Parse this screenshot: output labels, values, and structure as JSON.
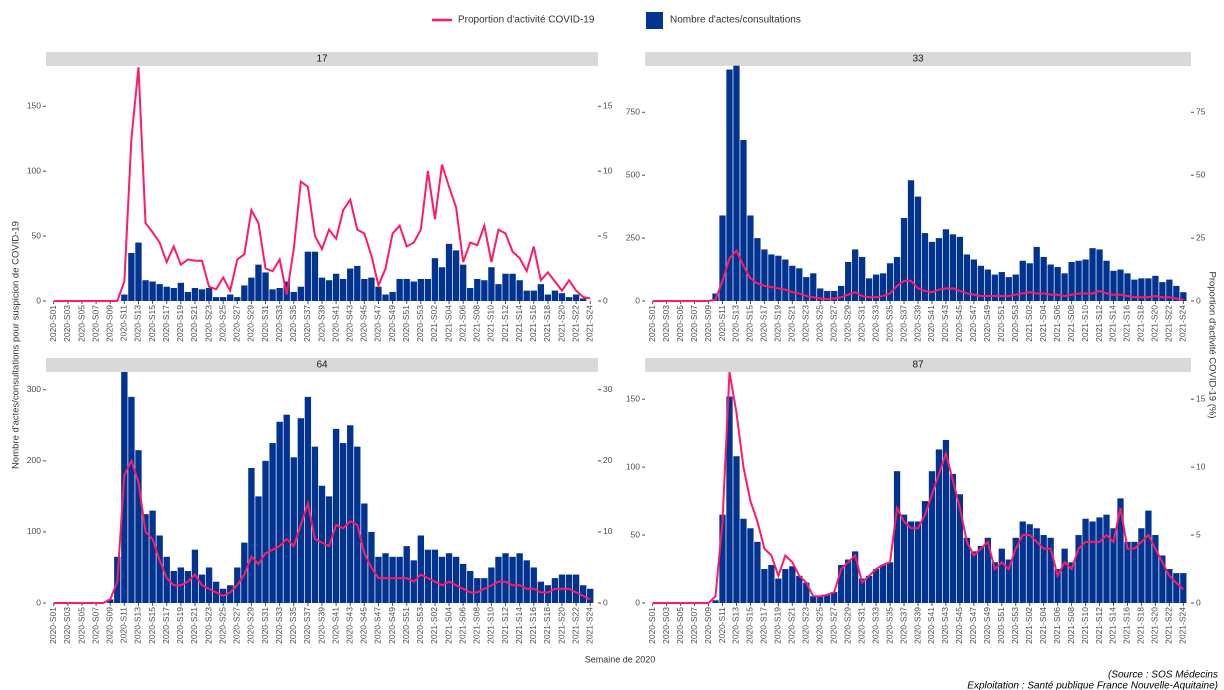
{
  "chart_data": [
    {
      "type": "bar",
      "title": "17",
      "categories": [
        "2020-S01",
        null,
        "2020-S03",
        null,
        "2020-S05",
        null,
        "2020-S07",
        null,
        "2020-S09",
        null,
        "2020-S11",
        null,
        "2020-S13",
        null,
        "2020-S15",
        null,
        "2020-S17",
        null,
        "2020-S19",
        null,
        "2020-S21",
        null,
        "2020-S23",
        null,
        "2020-S25",
        null,
        "2020-S27",
        null,
        "2020-S29",
        null,
        "2020-S31",
        null,
        "2020-S33",
        null,
        "2020-S35",
        null,
        "2020-S37",
        null,
        "2020-S39",
        null,
        "2020-S41",
        null,
        "2020-S43",
        null,
        "2020-S45",
        null,
        "2020-S47",
        null,
        "2020-S49",
        null,
        "2020-S51",
        null,
        "2020-S53",
        null,
        "2021-S02",
        null,
        "2021-S04",
        null,
        "2021-S06",
        null,
        "2021-S08",
        null,
        "2021-S10",
        null,
        "2021-S12",
        null,
        "2021-S14",
        null,
        "2021-S16",
        null,
        "2021-S18",
        null,
        "2021-S20",
        null,
        "2021-S22",
        null,
        "2021-S24"
      ],
      "series": [
        {
          "name": "Proportion d'activité COVID-19",
          "type": "line",
          "axis": "y2",
          "color": "#ff1a66",
          "values": [
            0,
            0,
            0,
            0,
            0,
            0,
            0,
            0,
            0,
            0,
            1.5,
            12.5,
            18,
            6,
            5.3,
            4.5,
            3,
            4.2,
            2.8,
            3.2,
            3.1,
            3.1,
            1.1,
            0.9,
            1.8,
            0.8,
            3.2,
            3.6,
            7,
            6,
            2.5,
            2.3,
            3.2,
            0.5,
            4,
            9.2,
            8.8,
            5,
            4,
            5.5,
            4.8,
            7,
            7.8,
            5.5,
            5.2,
            3.5,
            1.2,
            2.5,
            5.2,
            5.8,
            4.2,
            4.5,
            5.5,
            10,
            6.3,
            10.5,
            8.8,
            7.2,
            3,
            4.5,
            4.3,
            5.8,
            3,
            5.5,
            5.2,
            3.8,
            3.3,
            2.3,
            4.2,
            1.6,
            2.2,
            1.5,
            0.8,
            1.6,
            0.8,
            0.3,
            0.2
          ]
        },
        {
          "name": "Nombre d'actes/consultations",
          "type": "bar",
          "color": "#023391",
          "values": [
            0,
            0,
            0,
            0,
            0,
            0,
            0,
            0,
            0,
            0,
            5,
            37,
            45,
            16,
            15,
            13,
            11,
            10,
            14,
            7,
            10,
            9,
            10,
            3,
            3,
            5,
            3,
            12,
            18,
            28,
            22,
            9,
            10,
            15,
            7,
            11,
            38,
            38,
            18,
            16,
            21,
            17,
            25,
            27,
            17,
            18,
            11,
            5,
            7,
            17,
            17,
            15,
            17,
            17,
            33,
            26,
            44,
            39,
            28,
            10,
            17,
            16,
            26,
            13,
            21,
            21,
            16,
            8,
            8,
            13,
            5,
            8,
            6,
            3,
            5,
            2,
            0
          ]
        }
      ],
      "ylim": [
        0,
        181
      ],
      "yticks": [
        0,
        50,
        100,
        150
      ],
      "y2lim": [
        0,
        18.1
      ],
      "y2ticks": [
        0,
        5,
        10,
        15
      ]
    },
    {
      "type": "bar",
      "title": "33",
      "categories": [
        "2020-S01",
        null,
        "2020-S03",
        null,
        "2020-S05",
        null,
        "2020-S07",
        null,
        "2020-S09",
        null,
        "2020-S11",
        null,
        "2020-S13",
        null,
        "2020-S15",
        null,
        "2020-S17",
        null,
        "2020-S19",
        null,
        "2020-S21",
        null,
        "2020-S23",
        null,
        "2020-S25",
        null,
        "2020-S27",
        null,
        "2020-S29",
        null,
        "2020-S31",
        null,
        "2020-S33",
        null,
        "2020-S35",
        null,
        "2020-S37",
        null,
        "2020-S39",
        null,
        "2020-S41",
        null,
        "2020-S43",
        null,
        "2020-S45",
        null,
        "2020-S47",
        null,
        "2020-S49",
        null,
        "2020-S51",
        null,
        "2020-S53",
        null,
        "2021-S02",
        null,
        "2021-S04",
        null,
        "2021-S06",
        null,
        "2021-S08",
        null,
        "2021-S10",
        null,
        "2021-S12",
        null,
        "2021-S14",
        null,
        "2021-S16",
        null,
        "2021-S18",
        null,
        "2021-S20",
        null,
        "2021-S22",
        null,
        "2021-S24"
      ],
      "series": [
        {
          "name": "Proportion d'activité COVID-19",
          "type": "line",
          "axis": "y2",
          "color": "#ff1a66",
          "values": [
            0,
            0,
            0,
            0,
            0,
            0,
            0,
            0,
            0,
            0.5,
            8,
            17,
            20,
            14,
            9,
            7,
            6,
            5.5,
            5,
            4.5,
            3.5,
            3,
            2,
            1.5,
            1,
            0.8,
            1,
            1.5,
            2.5,
            3.5,
            2,
            1.5,
            1.5,
            2,
            3,
            6,
            8,
            8,
            5,
            4,
            3.5,
            4.5,
            5,
            5,
            4,
            3,
            2.5,
            2,
            2,
            2,
            2,
            2,
            2.5,
            3,
            3.5,
            3,
            3,
            2.5,
            2.5,
            2,
            2.5,
            3,
            3,
            3,
            4,
            3,
            2.5,
            2.5,
            2,
            1.5,
            1.5,
            1.5,
            2,
            1.5,
            1.5,
            1,
            0.5
          ]
        },
        {
          "name": "Nombre d'actes/consultations",
          "type": "bar",
          "color": "#023391",
          "values": [
            0,
            0,
            0,
            0,
            0,
            0,
            0,
            0,
            0,
            30,
            340,
            920,
            935,
            640,
            340,
            250,
            205,
            185,
            180,
            165,
            140,
            130,
            95,
            110,
            50,
            40,
            40,
            60,
            155,
            205,
            175,
            90,
            105,
            110,
            150,
            175,
            330,
            480,
            415,
            270,
            235,
            250,
            285,
            265,
            255,
            185,
            165,
            140,
            125,
            105,
            115,
            95,
            105,
            160,
            150,
            215,
            175,
            145,
            135,
            110,
            155,
            160,
            165,
            210,
            205,
            160,
            120,
            125,
            110,
            85,
            90,
            90,
            100,
            75,
            85,
            60,
            35
          ]
        }
      ],
      "ylim": [
        0,
        934
      ],
      "yticks": [
        0,
        250,
        500,
        750
      ],
      "y2lim": [
        0,
        93.4
      ],
      "y2ticks": [
        0,
        25,
        50,
        75
      ]
    },
    {
      "type": "bar",
      "title": "64",
      "categories": [
        "2020-S01",
        null,
        "2020-S03",
        null,
        "2020-S05",
        null,
        "2020-S07",
        null,
        "2020-S09",
        null,
        "2020-S11",
        null,
        "2020-S13",
        null,
        "2020-S15",
        null,
        "2020-S17",
        null,
        "2020-S19",
        null,
        "2020-S21",
        null,
        "2020-S23",
        null,
        "2020-S25",
        null,
        "2020-S27",
        null,
        "2020-S29",
        null,
        "2020-S31",
        null,
        "2020-S33",
        null,
        "2020-S35",
        null,
        "2020-S37",
        null,
        "2020-S39",
        null,
        "2020-S41",
        null,
        "2020-S43",
        null,
        "2020-S45",
        null,
        "2020-S47",
        null,
        "2020-S49",
        null,
        "2020-S51",
        null,
        "2020-S53",
        null,
        "2021-S02",
        null,
        "2021-S04",
        null,
        "2021-S06",
        null,
        "2021-S08",
        null,
        "2021-S10",
        null,
        "2021-S12",
        null,
        "2021-S14",
        null,
        "2021-S16",
        null,
        "2021-S18",
        null,
        "2021-S20",
        null,
        "2021-S22",
        null,
        "2021-S24"
      ],
      "series": [
        {
          "name": "Proportion d'activité COVID-19",
          "type": "line",
          "axis": "y2",
          "color": "#ff1a66",
          "values": [
            0,
            0,
            0,
            0,
            0,
            0,
            0,
            0,
            0.5,
            3,
            18,
            20,
            17,
            10,
            9,
            6,
            3.5,
            2.5,
            2.5,
            3,
            4,
            2.5,
            2,
            1.5,
            1,
            1.5,
            2.5,
            4,
            6.5,
            5.5,
            7,
            7.5,
            8,
            9,
            8,
            11,
            14,
            9,
            8.5,
            8,
            11,
            10.5,
            11.5,
            11,
            7,
            5,
            3.5,
            3.5,
            3.5,
            3.5,
            3.5,
            3,
            4,
            3.5,
            3,
            2.5,
            3,
            2.5,
            2,
            1.5,
            1.5,
            2,
            2.5,
            3,
            3,
            2.5,
            2.5,
            2,
            2,
            1.5,
            1.5,
            2,
            2,
            2,
            1.5,
            1,
            0.5
          ]
        },
        {
          "name": "Nombre d'actes/consultations",
          "type": "bar",
          "color": "#023391",
          "values": [
            0,
            0,
            0,
            0,
            0,
            0,
            0,
            0,
            5,
            65,
            325,
            290,
            215,
            125,
            130,
            95,
            65,
            45,
            50,
            45,
            75,
            40,
            50,
            30,
            20,
            25,
            50,
            85,
            190,
            150,
            200,
            225,
            255,
            265,
            205,
            260,
            290,
            220,
            165,
            150,
            245,
            225,
            250,
            220,
            140,
            100,
            65,
            70,
            65,
            65,
            80,
            60,
            95,
            75,
            75,
            65,
            70,
            65,
            55,
            45,
            35,
            35,
            50,
            65,
            70,
            65,
            70,
            60,
            50,
            30,
            25,
            35,
            40,
            40,
            40,
            25,
            20
          ]
        }
      ],
      "ylim": [
        0,
        325
      ],
      "yticks": [
        0,
        100,
        200,
        300
      ],
      "y2lim": [
        0,
        32.5
      ],
      "y2ticks": [
        0,
        10,
        20,
        30
      ]
    },
    {
      "type": "bar",
      "title": "87",
      "categories": [
        "2020-S01",
        null,
        "2020-S03",
        null,
        "2020-S05",
        null,
        "2020-S07",
        null,
        "2020-S09",
        null,
        "2020-S11",
        null,
        "2020-S13",
        null,
        "2020-S15",
        null,
        "2020-S17",
        null,
        "2020-S19",
        null,
        "2020-S21",
        null,
        "2020-S23",
        null,
        "2020-S25",
        null,
        "2020-S27",
        null,
        "2020-S29",
        null,
        "2020-S31",
        null,
        "2020-S33",
        null,
        "2020-S35",
        null,
        "2020-S37",
        null,
        "2020-S39",
        null,
        "2020-S41",
        null,
        "2020-S43",
        null,
        "2020-S45",
        null,
        "2020-S47",
        null,
        "2020-S49",
        null,
        "2020-S51",
        null,
        "2020-S53",
        null,
        "2021-S02",
        null,
        "2021-S04",
        null,
        "2021-S06",
        null,
        "2021-S08",
        null,
        "2021-S10",
        null,
        "2021-S12",
        null,
        "2021-S14",
        null,
        "2021-S16",
        null,
        "2021-S18",
        null,
        "2021-S20",
        null,
        "2021-S22",
        null,
        "2021-S24"
      ],
      "series": [
        {
          "name": "Proportion d'activité COVID-19",
          "type": "line",
          "axis": "y2",
          "color": "#ff1a66",
          "values": [
            0,
            0,
            0,
            0,
            0,
            0,
            0,
            0,
            0,
            0.5,
            6,
            17,
            14,
            10,
            7.5,
            6,
            4,
            3.5,
            2,
            3.5,
            3,
            2,
            1.5,
            0.5,
            0.5,
            0.6,
            0.8,
            2.5,
            3,
            3.5,
            1.5,
            2,
            2.5,
            2.8,
            3,
            7,
            6,
            5.5,
            5.5,
            6.5,
            8,
            9.5,
            11,
            9,
            7,
            4.5,
            3.5,
            4,
            4.5,
            2.5,
            3,
            2.5,
            4,
            5,
            5,
            4.5,
            4,
            4,
            2,
            3,
            2.5,
            4,
            4.5,
            4.5,
            4.5,
            5,
            4.5,
            7,
            4,
            4,
            4.5,
            5,
            4,
            3,
            2,
            1.5,
            1
          ]
        },
        {
          "name": "Nombre d'actes/consultations",
          "type": "bar",
          "color": "#023391",
          "values": [
            0,
            0,
            0,
            0,
            0,
            0,
            0,
            0,
            0,
            2,
            65,
            152,
            108,
            62,
            55,
            45,
            25,
            28,
            18,
            25,
            27,
            20,
            15,
            5,
            5,
            6,
            8,
            28,
            32,
            38,
            18,
            20,
            25,
            28,
            30,
            97,
            65,
            60,
            60,
            75,
            97,
            113,
            120,
            95,
            80,
            48,
            38,
            42,
            48,
            30,
            40,
            32,
            48,
            60,
            58,
            55,
            50,
            48,
            25,
            40,
            30,
            50,
            62,
            60,
            63,
            65,
            55,
            77,
            45,
            45,
            55,
            68,
            50,
            35,
            25,
            22,
            22
          ]
        }
      ],
      "ylim": [
        0,
        170
      ],
      "yticks": [
        0,
        50,
        100,
        150
      ],
      "y2lim": [
        0,
        17
      ],
      "y2ticks": [
        0,
        5,
        10,
        15
      ]
    }
  ],
  "x_label": "Semaine de 2020",
  "y_label": "Nombre d'actes/consultations pour suspicion de COVID-19",
  "y2_label": "Proportion d'activité COVID-19 (%)",
  "source": [
    "(Source : SOS Médecins",
    "Exploitation : Santé publique France Nouvelle-Aquitaine)"
  ]
}
